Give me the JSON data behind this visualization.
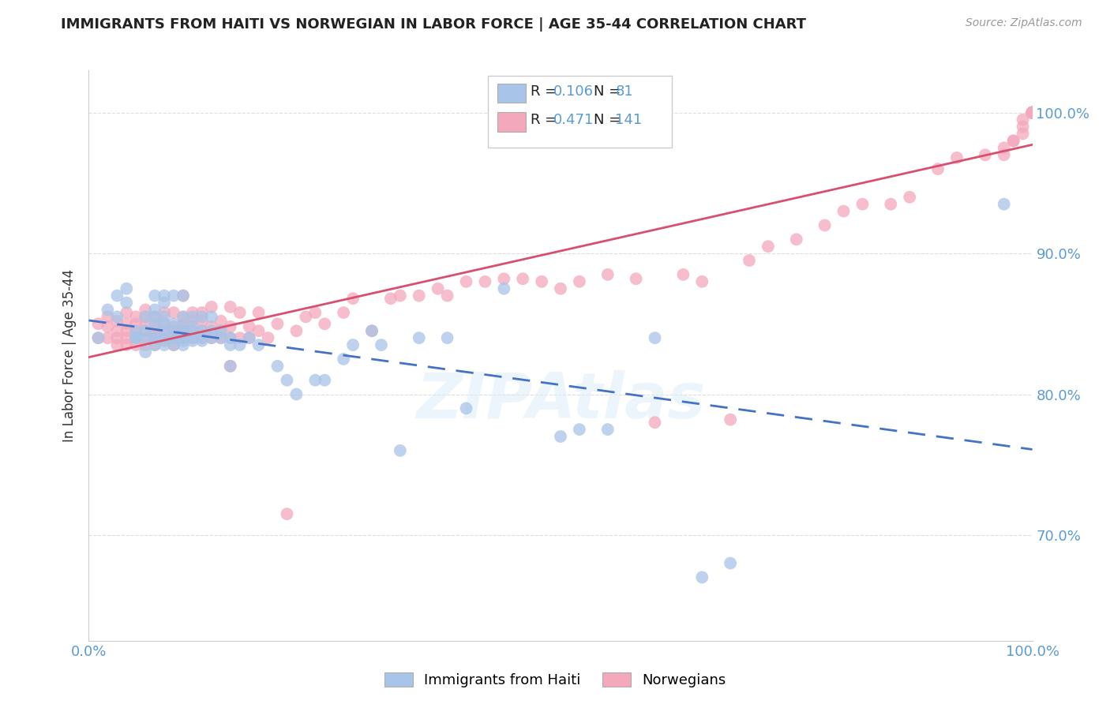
{
  "title": "IMMIGRANTS FROM HAITI VS NORWEGIAN IN LABOR FORCE | AGE 35-44 CORRELATION CHART",
  "source": "Source: ZipAtlas.com",
  "ylabel": "In Labor Force | Age 35-44",
  "xlim": [
    0.0,
    1.0
  ],
  "ylim": [
    0.625,
    1.03
  ],
  "ytick_labels": [
    "70.0%",
    "80.0%",
    "90.0%",
    "100.0%"
  ],
  "ytick_values": [
    0.7,
    0.8,
    0.9,
    1.0
  ],
  "haiti_color": "#a8c4e8",
  "norwegian_color": "#f4a8bc",
  "haiti_line_color": "#4472c4",
  "norwegian_line_color": "#d94f6e",
  "watermark_color": "#ddeeff",
  "background_color": "#ffffff",
  "grid_color": "#dddddd",
  "haiti_scatter_x": [
    0.01,
    0.02,
    0.03,
    0.03,
    0.04,
    0.04,
    0.05,
    0.05,
    0.05,
    0.05,
    0.06,
    0.06,
    0.06,
    0.06,
    0.07,
    0.07,
    0.07,
    0.07,
    0.07,
    0.07,
    0.07,
    0.08,
    0.08,
    0.08,
    0.08,
    0.08,
    0.08,
    0.08,
    0.09,
    0.09,
    0.09,
    0.09,
    0.09,
    0.1,
    0.1,
    0.1,
    0.1,
    0.1,
    0.1,
    0.1,
    0.11,
    0.11,
    0.11,
    0.11,
    0.11,
    0.12,
    0.12,
    0.12,
    0.12,
    0.13,
    0.13,
    0.13,
    0.14,
    0.14,
    0.15,
    0.15,
    0.15,
    0.16,
    0.17,
    0.18,
    0.2,
    0.21,
    0.22,
    0.24,
    0.25,
    0.27,
    0.28,
    0.3,
    0.31,
    0.33,
    0.35,
    0.38,
    0.4,
    0.44,
    0.5,
    0.52,
    0.55,
    0.6,
    0.65,
    0.68,
    0.97
  ],
  "haiti_scatter_y": [
    0.84,
    0.86,
    0.855,
    0.87,
    0.865,
    0.875,
    0.84,
    0.84,
    0.84,
    0.845,
    0.83,
    0.84,
    0.845,
    0.855,
    0.835,
    0.84,
    0.84,
    0.85,
    0.855,
    0.86,
    0.87,
    0.835,
    0.84,
    0.845,
    0.85,
    0.855,
    0.865,
    0.87,
    0.835,
    0.84,
    0.845,
    0.85,
    0.87,
    0.835,
    0.838,
    0.84,
    0.845,
    0.848,
    0.855,
    0.87,
    0.838,
    0.84,
    0.845,
    0.848,
    0.855,
    0.838,
    0.84,
    0.845,
    0.855,
    0.84,
    0.845,
    0.855,
    0.84,
    0.845,
    0.82,
    0.835,
    0.84,
    0.835,
    0.84,
    0.835,
    0.82,
    0.81,
    0.8,
    0.81,
    0.81,
    0.825,
    0.835,
    0.845,
    0.835,
    0.76,
    0.84,
    0.84,
    0.79,
    0.875,
    0.77,
    0.775,
    0.775,
    0.84,
    0.67,
    0.68,
    0.935
  ],
  "norwegian_scatter_x": [
    0.01,
    0.01,
    0.02,
    0.02,
    0.02,
    0.03,
    0.03,
    0.03,
    0.03,
    0.04,
    0.04,
    0.04,
    0.04,
    0.04,
    0.05,
    0.05,
    0.05,
    0.05,
    0.05,
    0.06,
    0.06,
    0.06,
    0.06,
    0.06,
    0.06,
    0.07,
    0.07,
    0.07,
    0.07,
    0.07,
    0.07,
    0.08,
    0.08,
    0.08,
    0.08,
    0.08,
    0.09,
    0.09,
    0.09,
    0.09,
    0.09,
    0.1,
    0.1,
    0.1,
    0.1,
    0.1,
    0.1,
    0.11,
    0.11,
    0.11,
    0.11,
    0.12,
    0.12,
    0.12,
    0.12,
    0.13,
    0.13,
    0.13,
    0.14,
    0.14,
    0.14,
    0.15,
    0.15,
    0.15,
    0.15,
    0.16,
    0.16,
    0.17,
    0.17,
    0.18,
    0.18,
    0.19,
    0.2,
    0.21,
    0.22,
    0.23,
    0.24,
    0.25,
    0.27,
    0.28,
    0.3,
    0.32,
    0.33,
    0.35,
    0.37,
    0.38,
    0.4,
    0.42,
    0.44,
    0.46,
    0.48,
    0.5,
    0.52,
    0.55,
    0.58,
    0.6,
    0.63,
    0.65,
    0.68,
    0.7,
    0.72,
    0.75,
    0.78,
    0.8,
    0.82,
    0.85,
    0.87,
    0.9,
    0.92,
    0.95,
    0.97,
    0.97,
    0.98,
    0.98,
    0.99,
    0.99,
    0.99,
    1.0,
    1.0,
    1.0,
    1.0,
    1.0,
    1.0,
    1.0,
    1.0,
    1.0,
    1.0,
    1.0,
    1.0,
    1.0,
    1.0,
    1.0,
    1.0,
    1.0,
    1.0,
    1.0,
    1.0
  ],
  "norwegian_scatter_y": [
    0.84,
    0.85,
    0.84,
    0.848,
    0.855,
    0.835,
    0.84,
    0.845,
    0.852,
    0.835,
    0.84,
    0.845,
    0.85,
    0.858,
    0.835,
    0.84,
    0.845,
    0.85,
    0.855,
    0.835,
    0.84,
    0.845,
    0.85,
    0.855,
    0.86,
    0.835,
    0.84,
    0.84,
    0.845,
    0.848,
    0.855,
    0.838,
    0.84,
    0.845,
    0.85,
    0.858,
    0.835,
    0.84,
    0.845,
    0.848,
    0.858,
    0.84,
    0.843,
    0.845,
    0.85,
    0.855,
    0.87,
    0.84,
    0.845,
    0.852,
    0.858,
    0.84,
    0.845,
    0.852,
    0.858,
    0.84,
    0.848,
    0.862,
    0.84,
    0.845,
    0.852,
    0.82,
    0.84,
    0.848,
    0.862,
    0.84,
    0.858,
    0.84,
    0.848,
    0.845,
    0.858,
    0.84,
    0.85,
    0.715,
    0.845,
    0.855,
    0.858,
    0.85,
    0.858,
    0.868,
    0.845,
    0.868,
    0.87,
    0.87,
    0.875,
    0.87,
    0.88,
    0.88,
    0.882,
    0.882,
    0.88,
    0.875,
    0.88,
    0.885,
    0.882,
    0.78,
    0.885,
    0.88,
    0.782,
    0.895,
    0.905,
    0.91,
    0.92,
    0.93,
    0.935,
    0.935,
    0.94,
    0.96,
    0.968,
    0.97,
    0.97,
    0.975,
    0.98,
    0.98,
    0.985,
    0.99,
    0.995,
    1.0,
    1.0,
    1.0,
    1.0,
    1.0,
    1.0,
    1.0,
    1.0,
    1.0,
    1.0,
    1.0,
    1.0,
    1.0,
    1.0,
    1.0,
    1.0,
    1.0,
    1.0,
    1.0,
    1.0
  ]
}
